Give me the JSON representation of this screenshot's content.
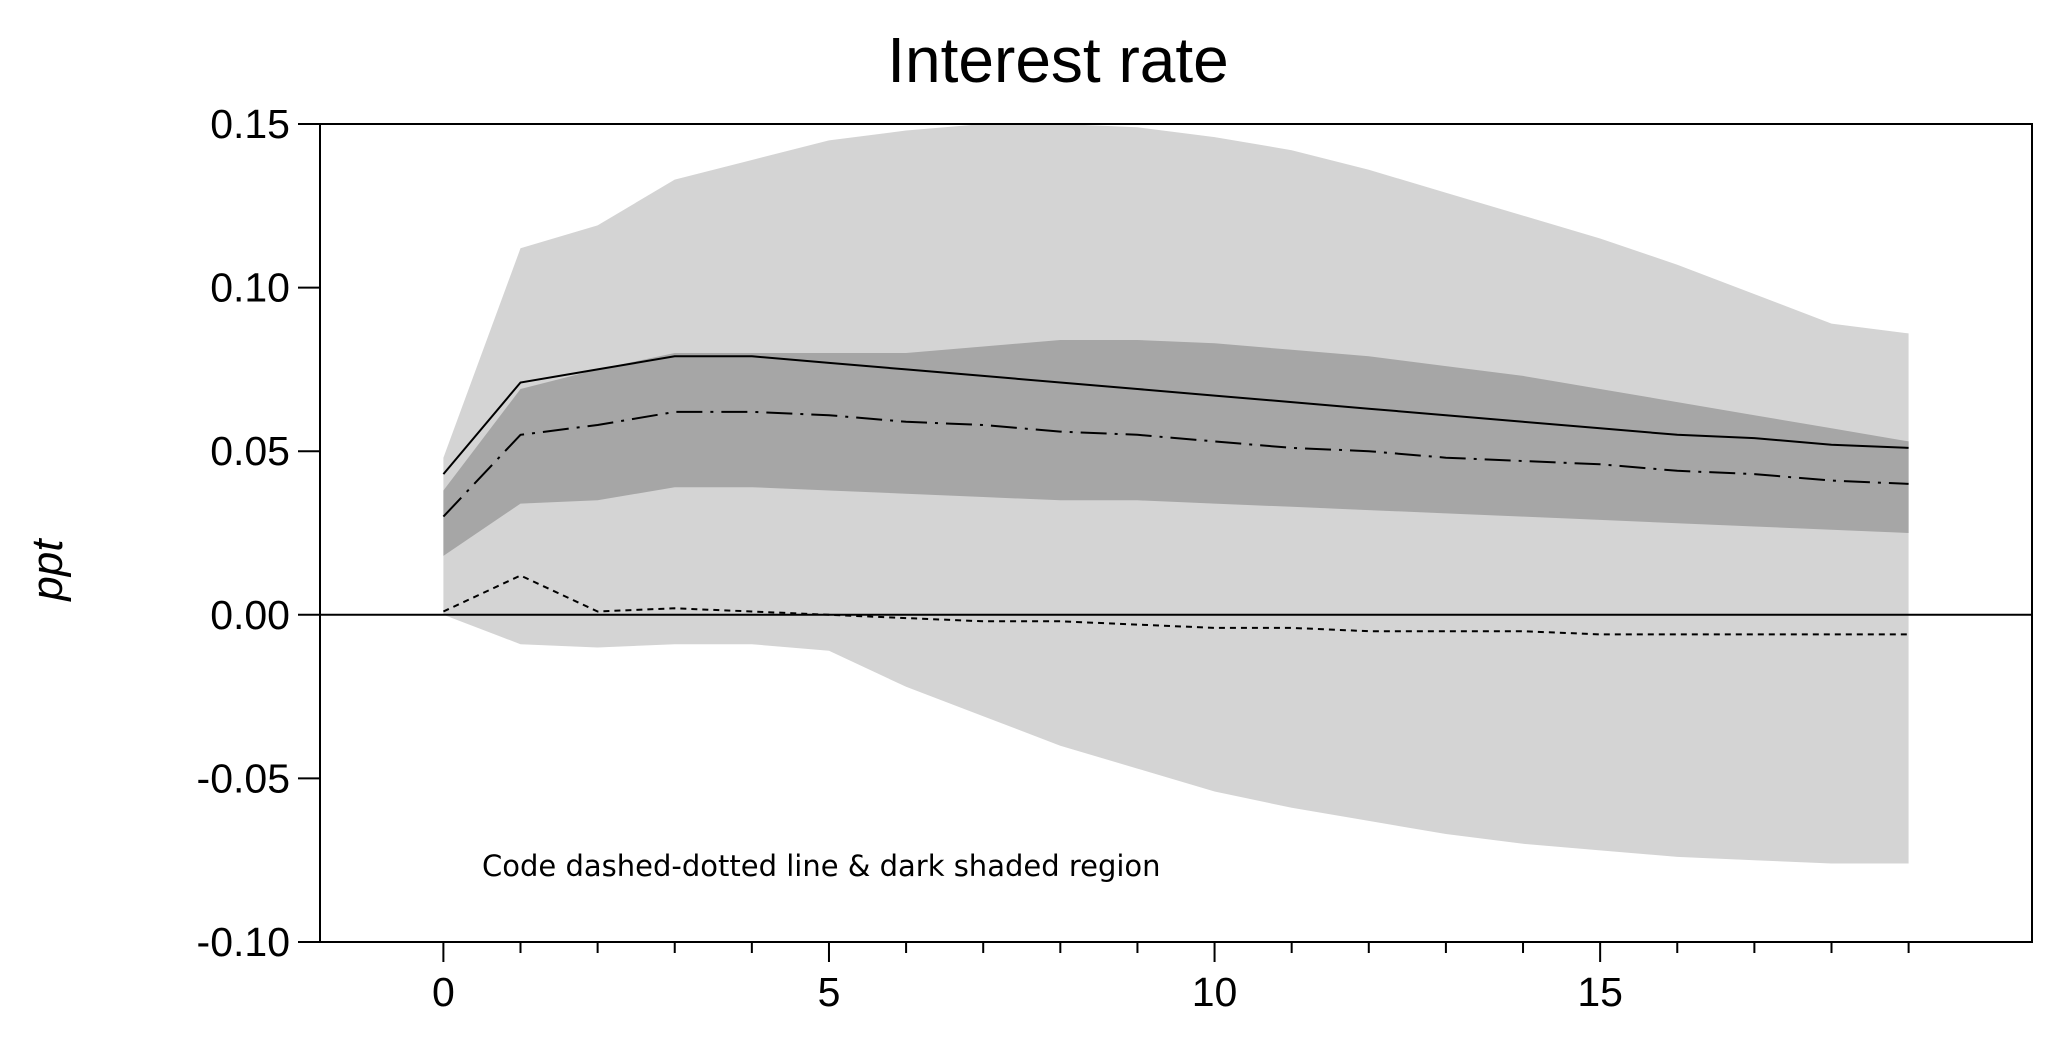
{
  "chart_data": {
    "type": "line",
    "title": "Interest rate",
    "xlabel": "",
    "ylabel": "ppt",
    "annotation": "Code dashed-dotted line & dark shaded region",
    "xlim": [
      -1.6,
      20.6
    ],
    "ylim": [
      -0.1,
      0.15
    ],
    "x_ticks": [
      0,
      5,
      10,
      15
    ],
    "x_tick_labels": [
      "0",
      "5",
      "10",
      "15"
    ],
    "x_minor_ticks": [
      1,
      2,
      3,
      4,
      6,
      7,
      8,
      9,
      11,
      12,
      13,
      14,
      16,
      17,
      18,
      19
    ],
    "y_ticks": [
      -0.1,
      -0.05,
      0.0,
      0.05,
      0.1,
      0.15
    ],
    "y_tick_labels": [
      "-0.10",
      "-0.05",
      "0.00",
      "0.05",
      "0.10",
      "0.15"
    ],
    "zero_line": 0,
    "grid": false,
    "colors": {
      "light_band": "#d4d4d4",
      "dark_band": "#a6a6a6",
      "line": "#000000"
    },
    "x": [
      0,
      1,
      2,
      3,
      4,
      5,
      6,
      7,
      8,
      9,
      10,
      11,
      12,
      13,
      14,
      15,
      16,
      17,
      18,
      19
    ],
    "bands": [
      {
        "style": "light",
        "upper": [
          0.048,
          0.112,
          0.119,
          0.133,
          0.139,
          0.145,
          0.148,
          0.15,
          0.15,
          0.149,
          0.146,
          0.142,
          0.136,
          0.129,
          0.122,
          0.115,
          0.107,
          0.098,
          0.089,
          0.086
        ],
        "lower": [
          0.0,
          -0.009,
          -0.01,
          -0.009,
          -0.009,
          -0.011,
          -0.022,
          -0.031,
          -0.04,
          -0.047,
          -0.054,
          -0.059,
          -0.063,
          -0.067,
          -0.07,
          -0.072,
          -0.074,
          -0.075,
          -0.076,
          -0.076
        ]
      },
      {
        "style": "dark",
        "upper": [
          0.038,
          0.069,
          0.075,
          0.08,
          0.08,
          0.08,
          0.08,
          0.082,
          0.084,
          0.084,
          0.083,
          0.081,
          0.079,
          0.076,
          0.073,
          0.069,
          0.065,
          0.061,
          0.057,
          0.053
        ],
        "lower": [
          0.018,
          0.034,
          0.035,
          0.039,
          0.039,
          0.038,
          0.037,
          0.036,
          0.035,
          0.035,
          0.034,
          0.033,
          0.032,
          0.031,
          0.03,
          0.029,
          0.028,
          0.027,
          0.026,
          0.025
        ]
      }
    ],
    "series": [
      {
        "style": "solid",
        "values": [
          0.043,
          0.071,
          0.075,
          0.079,
          0.079,
          0.077,
          0.075,
          0.073,
          0.071,
          0.069,
          0.067,
          0.065,
          0.063,
          0.061,
          0.059,
          0.057,
          0.055,
          0.054,
          0.052,
          0.051
        ]
      },
      {
        "style": "dash-dot",
        "values": [
          0.03,
          0.055,
          0.058,
          0.062,
          0.062,
          0.061,
          0.059,
          0.058,
          0.056,
          0.055,
          0.053,
          0.051,
          0.05,
          0.048,
          0.047,
          0.046,
          0.044,
          0.043,
          0.041,
          0.04
        ]
      },
      {
        "style": "dotted",
        "values": [
          0.001,
          0.012,
          0.001,
          0.002,
          0.001,
          0.0,
          -0.001,
          -0.002,
          -0.002,
          -0.003,
          -0.004,
          -0.004,
          -0.005,
          -0.005,
          -0.005,
          -0.006,
          -0.006,
          -0.006,
          -0.006,
          -0.006
        ]
      }
    ]
  }
}
